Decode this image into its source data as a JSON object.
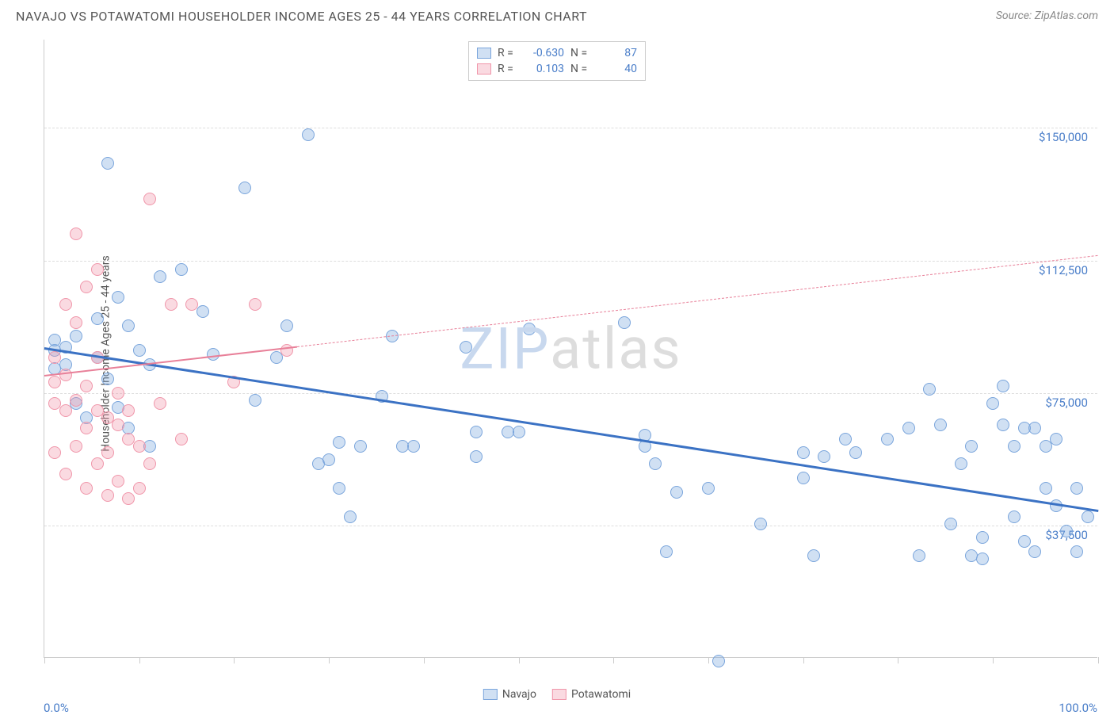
{
  "header": {
    "title": "NAVAJO VS POTAWATOMI HOUSEHOLDER INCOME AGES 25 - 44 YEARS CORRELATION CHART",
    "source": "Source: ZipAtlas.com"
  },
  "chart": {
    "type": "scatter",
    "y_label": "Householder Income Ages 25 - 44 years",
    "background_color": "#ffffff",
    "grid_color": "#dddddd",
    "axis_color": "#cccccc",
    "tick_label_color": "#4a7ec9",
    "label_fontsize": 14,
    "tick_fontsize": 15,
    "xlim": [
      0,
      100
    ],
    "ylim": [
      0,
      175000
    ],
    "x_tick_positions": [
      0,
      9,
      18,
      27,
      36,
      45,
      54,
      63,
      72,
      81,
      90,
      100
    ],
    "x_min_label": "0.0%",
    "x_max_label": "100.0%",
    "y_gridlines": [
      {
        "value": 37500,
        "label": "$37,500"
      },
      {
        "value": 75000,
        "label": "$75,000"
      },
      {
        "value": 112500,
        "label": "$112,500"
      },
      {
        "value": 150000,
        "label": "$150,000"
      }
    ],
    "point_radius": 8,
    "point_stroke_width": 1.5,
    "series": [
      {
        "name": "Navajo",
        "fill_color": "rgba(120,165,220,0.35)",
        "stroke_color": "#7aa5dc",
        "trend_color": "#3b72c4",
        "trend_width": 2.5,
        "trend": {
          "x1": 0,
          "y1": 88000,
          "x2": 100,
          "y2": 42000,
          "solid_until_x": 100
        },
        "points": [
          [
            1,
            87000
          ],
          [
            1,
            82000
          ],
          [
            1,
            90000
          ],
          [
            2,
            83000
          ],
          [
            2,
            88000
          ],
          [
            3,
            91000
          ],
          [
            3,
            72000
          ],
          [
            4,
            68000
          ],
          [
            5,
            85000
          ],
          [
            5,
            96000
          ],
          [
            6,
            79000
          ],
          [
            6,
            140000
          ],
          [
            7,
            102000
          ],
          [
            7,
            71000
          ],
          [
            8,
            94000
          ],
          [
            8,
            65000
          ],
          [
            9,
            87000
          ],
          [
            10,
            60000
          ],
          [
            10,
            83000
          ],
          [
            11,
            108000
          ],
          [
            13,
            110000
          ],
          [
            15,
            98000
          ],
          [
            16,
            86000
          ],
          [
            19,
            133000
          ],
          [
            20,
            73000
          ],
          [
            22,
            85000
          ],
          [
            23,
            94000
          ],
          [
            25,
            148000
          ],
          [
            26,
            55000
          ],
          [
            27,
            56000
          ],
          [
            28,
            48000
          ],
          [
            28,
            61000
          ],
          [
            29,
            40000
          ],
          [
            30,
            60000
          ],
          [
            32,
            74000
          ],
          [
            33,
            91000
          ],
          [
            34,
            60000
          ],
          [
            35,
            60000
          ],
          [
            40,
            88000
          ],
          [
            41,
            57000
          ],
          [
            41,
            64000
          ],
          [
            44,
            64000
          ],
          [
            45,
            64000
          ],
          [
            46,
            93000
          ],
          [
            55,
            95000
          ],
          [
            57,
            60000
          ],
          [
            57,
            63000
          ],
          [
            58,
            55000
          ],
          [
            59,
            30000
          ],
          [
            60,
            47000
          ],
          [
            63,
            48000
          ],
          [
            64,
            -1000
          ],
          [
            68,
            38000
          ],
          [
            72,
            58000
          ],
          [
            72,
            51000
          ],
          [
            73,
            29000
          ],
          [
            74,
            57000
          ],
          [
            76,
            62000
          ],
          [
            77,
            58000
          ],
          [
            80,
            62000
          ],
          [
            82,
            65000
          ],
          [
            83,
            29000
          ],
          [
            84,
            76000
          ],
          [
            85,
            66000
          ],
          [
            86,
            38000
          ],
          [
            87,
            55000
          ],
          [
            88,
            29000
          ],
          [
            88,
            60000
          ],
          [
            89,
            28000
          ],
          [
            89,
            34000
          ],
          [
            90,
            72000
          ],
          [
            91,
            77000
          ],
          [
            91,
            66000
          ],
          [
            92,
            60000
          ],
          [
            92,
            40000
          ],
          [
            93,
            65000
          ],
          [
            93,
            33000
          ],
          [
            94,
            30000
          ],
          [
            94,
            65000
          ],
          [
            95,
            60000
          ],
          [
            95,
            48000
          ],
          [
            96,
            62000
          ],
          [
            96,
            43000
          ],
          [
            97,
            36000
          ],
          [
            98,
            30000
          ],
          [
            98,
            48000
          ],
          [
            99,
            40000
          ]
        ]
      },
      {
        "name": "Potawatomi",
        "fill_color": "rgba(240,150,170,0.35)",
        "stroke_color": "#f096aa",
        "trend_color": "#e88099",
        "trend_width": 2,
        "trend": {
          "x1": 0,
          "y1": 80000,
          "x2": 100,
          "y2": 114000,
          "solid_until_x": 24
        },
        "points": [
          [
            1,
            72000
          ],
          [
            1,
            78000
          ],
          [
            1,
            85000
          ],
          [
            1,
            58000
          ],
          [
            2,
            70000
          ],
          [
            2,
            100000
          ],
          [
            2,
            52000
          ],
          [
            2,
            80000
          ],
          [
            3,
            73000
          ],
          [
            3,
            120000
          ],
          [
            3,
            60000
          ],
          [
            3,
            95000
          ],
          [
            4,
            105000
          ],
          [
            4,
            65000
          ],
          [
            4,
            77000
          ],
          [
            4,
            48000
          ],
          [
            5,
            85000
          ],
          [
            5,
            110000
          ],
          [
            5,
            55000
          ],
          [
            5,
            70000
          ],
          [
            6,
            68000
          ],
          [
            6,
            46000
          ],
          [
            6,
            58000
          ],
          [
            7,
            75000
          ],
          [
            7,
            50000
          ],
          [
            7,
            66000
          ],
          [
            8,
            62000
          ],
          [
            8,
            45000
          ],
          [
            8,
            70000
          ],
          [
            9,
            48000
          ],
          [
            9,
            60000
          ],
          [
            10,
            130000
          ],
          [
            10,
            55000
          ],
          [
            11,
            72000
          ],
          [
            12,
            100000
          ],
          [
            13,
            62000
          ],
          [
            14,
            100000
          ],
          [
            18,
            78000
          ],
          [
            20,
            100000
          ],
          [
            23,
            87000
          ]
        ]
      }
    ],
    "legend_top": {
      "rows": [
        {
          "swatch_fill": "rgba(120,165,220,0.35)",
          "swatch_border": "#7aa5dc",
          "r_label": "R =",
          "r_value": "-0.630",
          "n_label": "N =",
          "n_value": "87"
        },
        {
          "swatch_fill": "rgba(240,150,170,0.35)",
          "swatch_border": "#f096aa",
          "r_label": "R =",
          "r_value": "0.103",
          "n_label": "N =",
          "n_value": "40"
        }
      ]
    },
    "legend_bottom": [
      {
        "swatch_fill": "rgba(120,165,220,0.35)",
        "swatch_border": "#7aa5dc",
        "label": "Navajo"
      },
      {
        "swatch_fill": "rgba(240,150,170,0.35)",
        "swatch_border": "#f096aa",
        "label": "Potawatomi"
      }
    ],
    "watermark": {
      "part_a": "ZIP",
      "part_b": "atlas",
      "color_a": "#c8d8ee",
      "color_b": "#dddddd",
      "fontsize": 72
    }
  }
}
